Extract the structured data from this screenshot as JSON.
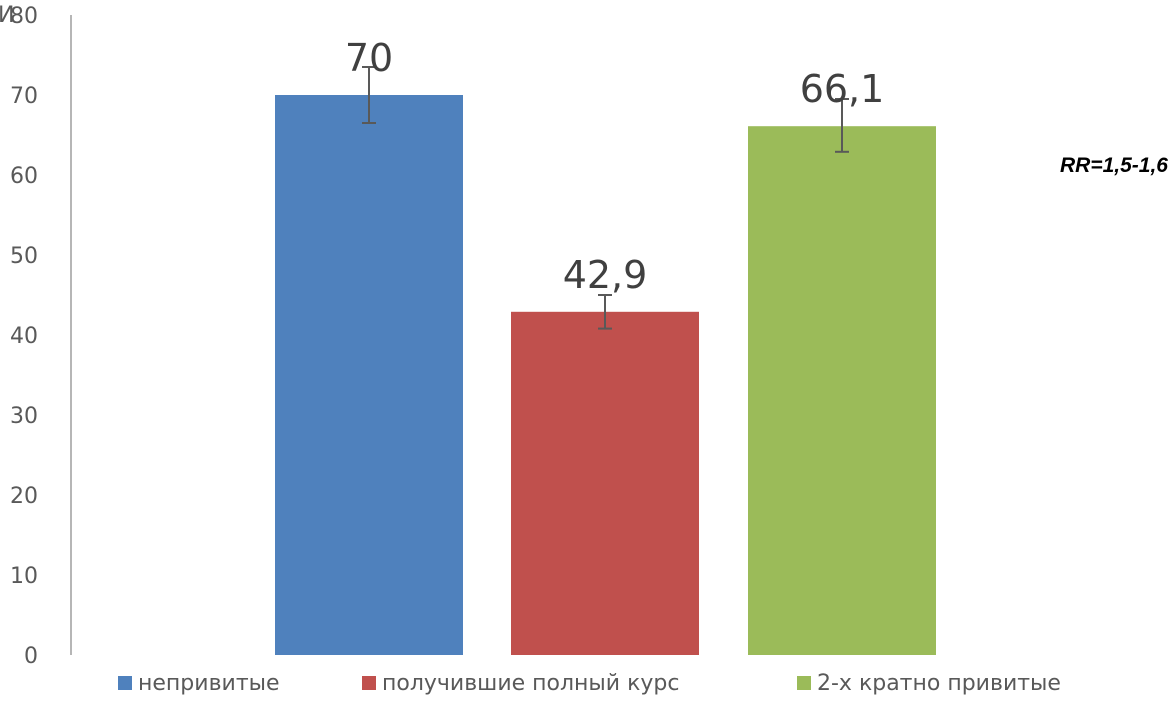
{
  "chart_data": {
    "type": "bar",
    "categories": [
      "непривитые",
      "получившие полный курс",
      "2-х кратно привитые"
    ],
    "values": [
      70,
      42.9,
      66.1
    ],
    "value_labels": [
      "70",
      "42,9",
      "66,1"
    ],
    "error_bars": [
      {
        "low": 66.5,
        "high": 73.5
      },
      {
        "low": 40.8,
        "high": 45.0
      },
      {
        "low": 62.9,
        "high": 69.5
      }
    ],
    "colors": [
      "#4f81bd",
      "#c0504d",
      "#9bbb59"
    ],
    "ylim": [
      0,
      80
    ],
    "yticks": [
      0,
      10,
      20,
      30,
      40,
      50,
      60,
      70,
      80
    ],
    "grid": false,
    "legend": {
      "position": "bottom",
      "entries": [
        "непривитые",
        "получившие полный курс",
        "2-х кратно привитые"
      ]
    },
    "annotation": "RR=1,5-1,6",
    "axis_label_fragment": "И"
  }
}
